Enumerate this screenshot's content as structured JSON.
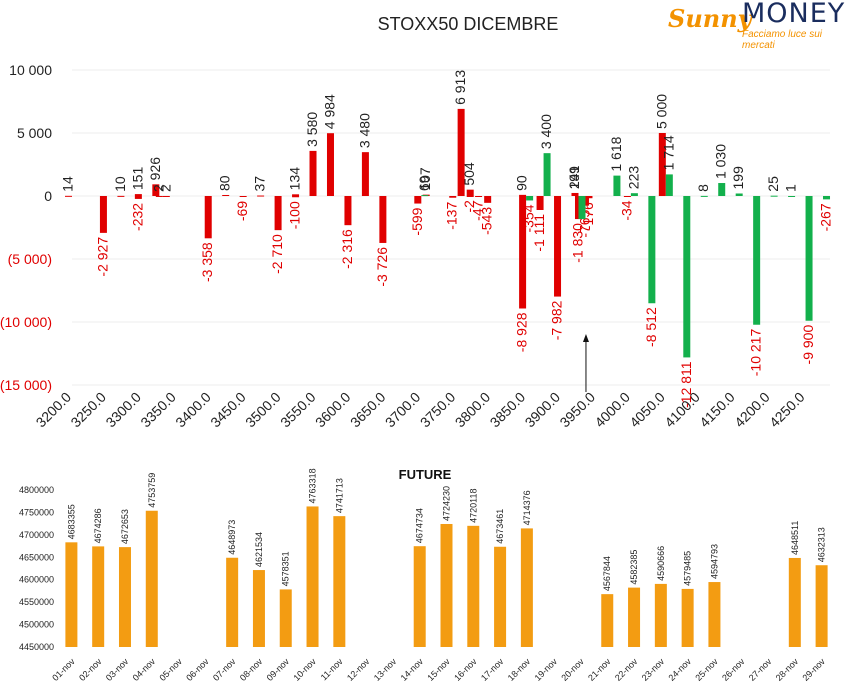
{
  "logo": {
    "word": "MONEY",
    "sunny": "Sunny",
    "tagline": "Facciamo luce sui mercati"
  },
  "colors": {
    "call": "#e00000",
    "put": "#13b04c",
    "future": "#f39c12",
    "text": "#222222"
  },
  "chart_data": [
    {
      "type": "bar",
      "title": "STOXX50 DICEMBRE",
      "xlabel": "",
      "ylabel": "",
      "ylim": [
        -15000,
        10000
      ],
      "yticks": [
        {
          "value": 10000,
          "label": "10 000"
        },
        {
          "value": 5000,
          "label": "5 000"
        },
        {
          "value": 0,
          "label": "0"
        },
        {
          "value": -5000,
          "label": "(5 000)"
        },
        {
          "value": -10000,
          "label": "(10 000)"
        },
        {
          "value": -15000,
          "label": "(15 000)"
        }
      ],
      "categories": [
        "3200.0",
        "3250.0",
        "3300.0",
        "3350.0",
        "3400.0",
        "3450.0",
        "3500.0",
        "3550.0",
        "3600.0",
        "3650.0",
        "3700.0",
        "3750.0",
        "3800.0",
        "3850.0",
        "3900.0",
        "3950.0",
        "4000.0",
        "4050.0",
        "4100.0",
        "4150.0",
        "4200.0",
        "4250.0"
      ],
      "grid": true,
      "legend": "none",
      "arrow_at_strike": "3950.0",
      "series": [
        {
          "values": [
            {
              "x": 3200,
              "y": 14,
              "label": "14"
            },
            {
              "x": 3250,
              "y": -2927,
              "label": "-2 927"
            },
            {
              "x": 3275,
              "y": 10,
              "label": "10"
            },
            {
              "x": 3300,
              "y": 151,
              "label": "151"
            },
            {
              "x": 3300,
              "y": -232,
              "label": "-232"
            },
            {
              "x": 3325,
              "y": 926,
              "label": "926"
            },
            {
              "x": 3330,
              "y": 2,
              "label": "2"
            },
            {
              "x": 3340,
              "y": 2,
              "label": "2"
            },
            {
              "x": 3400,
              "y": -3358,
              "label": "-3 358"
            },
            {
              "x": 3425,
              "y": 80,
              "label": "80"
            },
            {
              "x": 3450,
              "y": -69,
              "label": "-69"
            },
            {
              "x": 3475,
              "y": 37,
              "label": "37"
            },
            {
              "x": 3500,
              "y": -2710,
              "label": "-2 710"
            },
            {
              "x": 3525,
              "y": 134,
              "label": "134"
            },
            {
              "x": 3525,
              "y": -100,
              "label": "-100"
            },
            {
              "x": 3550,
              "y": 3580,
              "label": "3 580"
            },
            {
              "x": 3575,
              "y": 4984,
              "label": "4 984"
            },
            {
              "x": 3600,
              "y": -2316,
              "label": "-2 316"
            },
            {
              "x": 3625,
              "y": 3480,
              "label": "3 480"
            },
            {
              "x": 3650,
              "y": -3726,
              "label": "-3 726"
            },
            {
              "x": 3700,
              "y": -599,
              "label": "-599"
            },
            {
              "x": 3712,
              "y": 107,
              "label": "107"
            },
            {
              "x": 3750,
              "y": -137,
              "label": "-137"
            },
            {
              "x": 3762,
              "y": 6913,
              "label": "6 913"
            },
            {
              "x": 3775,
              "y": 504,
              "label": "504"
            },
            {
              "x": 3775,
              "y": -2,
              "label": "-2"
            },
            {
              "x": 3787,
              "y": -47,
              "label": "-47"
            },
            {
              "x": 3800,
              "y": -543,
              "label": "-543"
            },
            {
              "x": 3850,
              "y": 90,
              "label": "90"
            },
            {
              "x": 3850,
              "y": -8928,
              "label": "-8 928"
            },
            {
              "x": 3875,
              "y": -1111,
              "label": "-1 111"
            },
            {
              "x": 3900,
              "y": -7982,
              "label": "-7 982"
            },
            {
              "x": 3925,
              "y": 199,
              "label": "199"
            },
            {
              "x": 3925,
              "y": 241,
              "label": "241"
            },
            {
              "x": 3930,
              "y": -1830,
              "label": "-1 830"
            },
            {
              "x": 3940,
              "y": -765,
              "label": "-765"
            },
            {
              "x": 3945,
              "y": -176,
              "label": "-176"
            },
            {
              "x": 4000,
              "y": -34,
              "label": "-34"
            },
            {
              "x": 4050,
              "y": 5000,
              "label": "5 000"
            }
          ]
        },
        {
          "values": [
            {
              "x": 3700,
              "y": 69,
              "label": "69"
            },
            {
              "x": 3850,
              "y": -354,
              "label": "-354"
            },
            {
              "x": 3875,
              "y": 3400,
              "label": "3 400"
            },
            {
              "x": 3925,
              "y": -1830,
              "label": ""
            },
            {
              "x": 3975,
              "y": 1618,
              "label": "1 618"
            },
            {
              "x": 4000,
              "y": 223,
              "label": "223"
            },
            {
              "x": 4025,
              "y": -8512,
              "label": "-8 512"
            },
            {
              "x": 4050,
              "y": 1714,
              "label": "1 714"
            },
            {
              "x": 4075,
              "y": -12811,
              "label": "-12 811"
            },
            {
              "x": 4100,
              "y": 8,
              "label": "8"
            },
            {
              "x": 4125,
              "y": 1030,
              "label": "1 030"
            },
            {
              "x": 4150,
              "y": 199,
              "label": "199"
            },
            {
              "x": 4175,
              "y": -10217,
              "label": "-10 217"
            },
            {
              "x": 4200,
              "y": 25,
              "label": "25"
            },
            {
              "x": 4225,
              "y": 1,
              "label": "1"
            },
            {
              "x": 4250,
              "y": -9900,
              "label": "-9 900"
            },
            {
              "x": 4275,
              "y": -267,
              "label": "-267"
            }
          ]
        }
      ]
    },
    {
      "type": "bar",
      "title": "FUTURE",
      "xlabel": "",
      "ylabel": "",
      "ylim": [
        4450000,
        4800000
      ],
      "yticks": [
        4450000,
        4500000,
        4550000,
        4600000,
        4650000,
        4700000,
        4750000,
        4800000
      ],
      "categories": [
        "01-nov",
        "02-nov",
        "03-nov",
        "04-nov",
        "05-nov",
        "06-nov",
        "07-nov",
        "08-nov",
        "09-nov",
        "10-nov",
        "11-nov",
        "12-nov",
        "13-nov",
        "14-nov",
        "15-nov",
        "16-nov",
        "17-nov",
        "18-nov",
        "19-nov",
        "20-nov",
        "21-nov",
        "22-nov",
        "23-nov",
        "24-nov",
        "25-nov",
        "26-nov",
        "27-nov",
        "28-nov",
        "29-nov"
      ],
      "values": [
        4683355,
        4674286,
        4672653,
        4753759,
        null,
        null,
        4648973,
        4621534,
        4578351,
        4763318,
        4741713,
        null,
        null,
        4674734,
        4724230,
        4720118,
        4673461,
        4714376,
        null,
        null,
        4567844,
        4582385,
        4590666,
        4579485,
        4594793,
        null,
        null,
        4648511,
        4632313
      ],
      "grid": false,
      "legend": "none"
    }
  ]
}
